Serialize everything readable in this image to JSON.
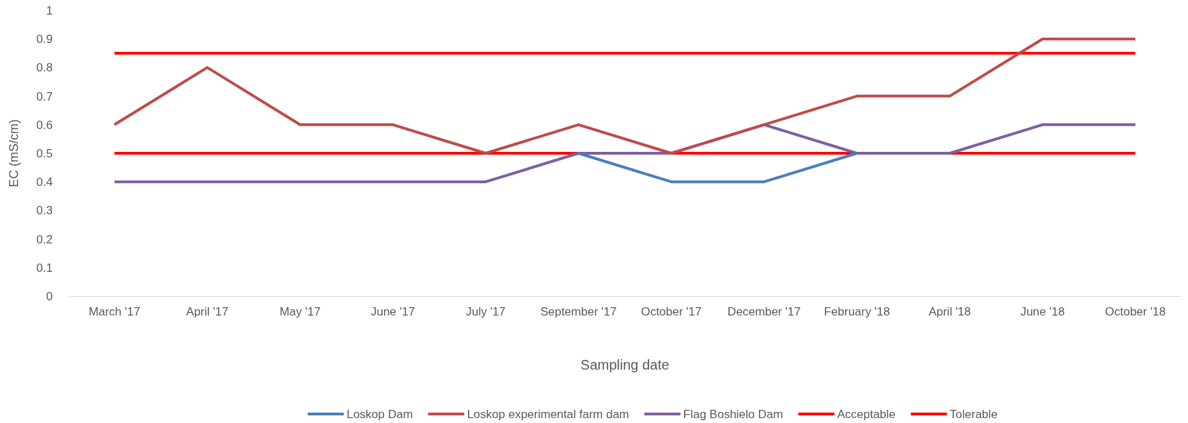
{
  "chart_data": {
    "type": "line",
    "xlabel": "Sampling date",
    "ylabel": "EC (mS/cm)",
    "categories": [
      "March '17",
      "April '17",
      "May '17",
      "June '17",
      "July '17",
      "September '17",
      "October '17",
      "December '17",
      "February '18",
      "April '18",
      "June '18",
      "October '18"
    ],
    "series": [
      {
        "name": "Loskop Dam",
        "color": "#4a7ebb",
        "values": [
          null,
          null,
          null,
          null,
          null,
          0.5,
          0.4,
          0.4,
          0.5,
          null,
          null,
          null
        ]
      },
      {
        "name": "Loskop experimental farm dam",
        "color": "#be4b48",
        "values": [
          0.6,
          0.8,
          0.6,
          0.6,
          0.5,
          0.6,
          0.5,
          0.6,
          0.7,
          0.7,
          0.9,
          0.9
        ]
      },
      {
        "name": "Flag Boshielo Dam",
        "color": "#7d60a0",
        "values": [
          0.4,
          0.4,
          0.4,
          0.4,
          0.4,
          0.5,
          0.5,
          0.6,
          0.5,
          0.5,
          0.6,
          0.6
        ]
      },
      {
        "name": "Acceptable",
        "color": "#ff0000",
        "values": [
          0.85,
          0.85,
          0.85,
          0.85,
          0.85,
          0.85,
          0.85,
          0.85,
          0.85,
          0.85,
          0.85,
          0.85
        ]
      },
      {
        "name": "Tolerable",
        "color": "#ff0000",
        "values": [
          0.5,
          0.5,
          0.5,
          0.5,
          0.5,
          0.5,
          0.5,
          0.5,
          0.5,
          0.5,
          0.5,
          0.5
        ]
      }
    ],
    "ylim": [
      0,
      1
    ],
    "yticks": [
      0,
      0.1,
      0.2,
      0.3,
      0.4,
      0.5,
      0.6,
      0.7,
      0.8,
      0.9,
      1
    ],
    "legend": "bottom",
    "marker": "none",
    "line_style": "solid",
    "grid": false
  }
}
